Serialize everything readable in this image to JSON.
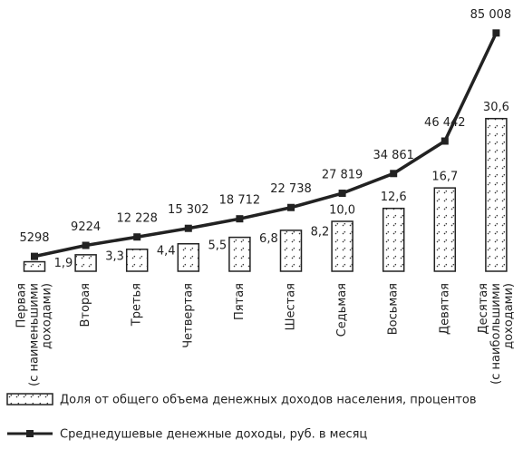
{
  "chart_data": {
    "type": "bar_line",
    "categories": [
      [
        "Первая",
        "(с наименьшими",
        "доходами)"
      ],
      [
        "Вторая"
      ],
      [
        "Третья"
      ],
      [
        "Четвертая"
      ],
      [
        "Пятая"
      ],
      [
        "Шестая"
      ],
      [
        "Седьмая"
      ],
      [
        "Восьмая"
      ],
      [
        "Девятая"
      ],
      [
        "Десятая",
        "(с наибольшими",
        "доходами)"
      ]
    ],
    "series": [
      {
        "name": "Доля от общего объема денежных доходов населения, процентов",
        "kind": "bar",
        "color": "#222222",
        "values": [
          1.9,
          3.3,
          4.4,
          5.5,
          6.8,
          8.2,
          10.0,
          12.6,
          16.7,
          30.6
        ],
        "value_labels": [
          "1,9",
          "3,3",
          "4,4",
          "5,5",
          "6,8",
          "8,2",
          "10,0",
          "12,6",
          "16,7",
          "30,6"
        ]
      },
      {
        "name": "Среднедушевые денежные доходы, руб. в месяц",
        "kind": "line",
        "axis": "y2",
        "color": "#222222",
        "values": [
          5298,
          9224,
          12228,
          15302,
          18712,
          22738,
          27819,
          34861,
          46442,
          85008
        ],
        "value_labels": [
          "5298",
          "9224",
          "12 228",
          "15 302",
          "18 712",
          "22 738",
          "27 819",
          "34 861",
          "46 442",
          "85 008"
        ]
      }
    ],
    "ylim": [
      0,
      50
    ],
    "y2lim": [
      0,
      89000
    ]
  }
}
